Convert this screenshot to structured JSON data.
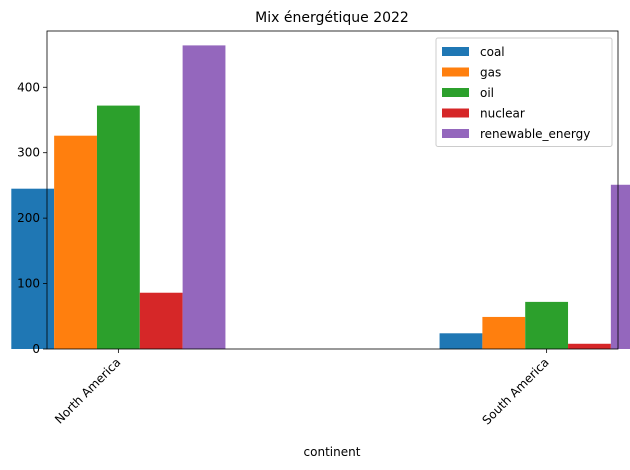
{
  "chart_data": {
    "type": "bar",
    "title": "Mix énergétique 2022",
    "xlabel": "continent",
    "ylabel": "",
    "categories": [
      "North America",
      "South America"
    ],
    "series": [
      {
        "name": "coal",
        "color": "#1f77b4",
        "values": [
          245,
          24
        ]
      },
      {
        "name": "gas",
        "color": "#ff7f0e",
        "values": [
          326,
          49
        ]
      },
      {
        "name": "oil",
        "color": "#2ca02c",
        "values": [
          372,
          72
        ]
      },
      {
        "name": "nuclear",
        "color": "#d62728",
        "values": [
          86,
          8
        ]
      },
      {
        "name": "renewable_energy",
        "color": "#9467bd",
        "values": [
          464,
          251
        ]
      }
    ],
    "ylim": [
      0,
      486
    ],
    "yticks": [
      0,
      100,
      200,
      300,
      400
    ],
    "legend_position": "top-right",
    "grid": false,
    "xtick_rotation": 45
  }
}
